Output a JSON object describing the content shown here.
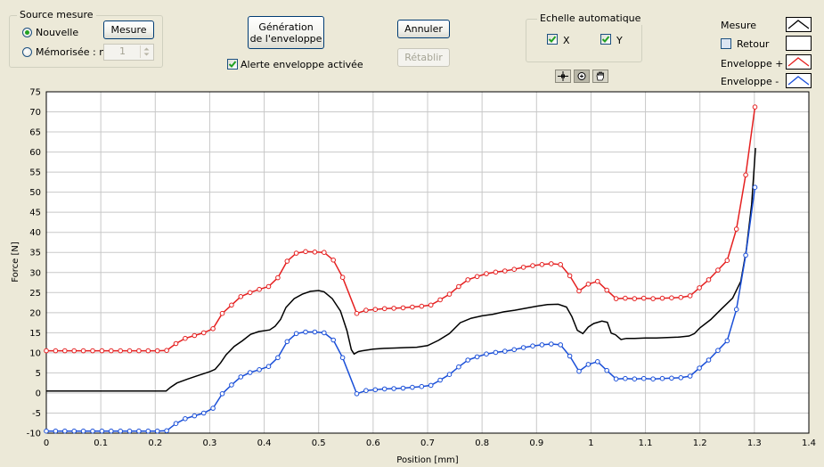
{
  "source_group": {
    "title": "Source mesure",
    "radio_nouvelle": "Nouvelle",
    "radio_memorisee": "Mémorisée : n°",
    "selected": "Nouvelle",
    "memo_number": "1",
    "mesure_button": "Mesure"
  },
  "envelope": {
    "generate_button_line1": "Génération",
    "generate_button_line2": "de l'enveloppe",
    "alert_checkbox": "Alerte enveloppe activée",
    "alert_checked": true
  },
  "actions": {
    "annuler_button": "Annuler",
    "retablir_button": "Rétablir",
    "retablir_enabled": false
  },
  "autoscale_group": {
    "title": "Echelle automatique",
    "x_label": "X",
    "x_checked": true,
    "y_label": "Y",
    "y_checked": true
  },
  "graph_tools": [
    "crosshair-cursor-icon",
    "zoom-icon",
    "pan-hand-icon"
  ],
  "legend": {
    "mesure": "Mesure",
    "retour": "Retour",
    "retour_checked": false,
    "enveloppe_plus": "Enveloppe +",
    "enveloppe_minus": "Enveloppe -"
  },
  "chart_data": {
    "type": "line",
    "xlabel": "Position [mm]",
    "ylabel": "Force [N]",
    "xlim": [
      0,
      1.4
    ],
    "ylim": [
      -10,
      75
    ],
    "x_ticks": [
      0,
      0.1,
      0.2,
      0.3,
      0.4,
      0.5,
      0.6,
      0.7,
      0.8,
      0.9,
      1,
      1.1,
      1.2,
      1.3,
      1.4
    ],
    "y_ticks": [
      -10,
      -5,
      0,
      5,
      10,
      15,
      20,
      25,
      30,
      35,
      40,
      45,
      50,
      55,
      60,
      65,
      70,
      75
    ],
    "grid": true,
    "series": [
      {
        "name": "Enveloppe +",
        "color": "#e52020",
        "markers": true,
        "points": [
          [
            0,
            10.5
          ],
          [
            0.017,
            10.5
          ],
          [
            0.034,
            10.5
          ],
          [
            0.051,
            10.5
          ],
          [
            0.068,
            10.5
          ],
          [
            0.085,
            10.5
          ],
          [
            0.102,
            10.5
          ],
          [
            0.119,
            10.5
          ],
          [
            0.136,
            10.5
          ],
          [
            0.153,
            10.5
          ],
          [
            0.17,
            10.5
          ],
          [
            0.187,
            10.5
          ],
          [
            0.204,
            10.5
          ],
          [
            0.221,
            10.6
          ],
          [
            0.238,
            12.3
          ],
          [
            0.255,
            13.6
          ],
          [
            0.272,
            14.3
          ],
          [
            0.289,
            15
          ],
          [
            0.306,
            16
          ],
          [
            0.323,
            19.8
          ],
          [
            0.34,
            21.9
          ],
          [
            0.357,
            24
          ],
          [
            0.374,
            25
          ],
          [
            0.391,
            25.8
          ],
          [
            0.408,
            26.5
          ],
          [
            0.425,
            28.7
          ],
          [
            0.442,
            32.8
          ],
          [
            0.459,
            34.8
          ],
          [
            0.476,
            35.2
          ],
          [
            0.493,
            35.1
          ],
          [
            0.51,
            35
          ],
          [
            0.527,
            33.1
          ],
          [
            0.544,
            28.8
          ],
          [
            0.57,
            19.8
          ],
          [
            0.587,
            20.6
          ],
          [
            0.604,
            20.8
          ],
          [
            0.621,
            21
          ],
          [
            0.638,
            21.1
          ],
          [
            0.655,
            21.2
          ],
          [
            0.672,
            21.4
          ],
          [
            0.689,
            21.6
          ],
          [
            0.706,
            21.9
          ],
          [
            0.723,
            23.2
          ],
          [
            0.74,
            24.6
          ],
          [
            0.757,
            26.5
          ],
          [
            0.774,
            28.2
          ],
          [
            0.791,
            29
          ],
          [
            0.808,
            29.7
          ],
          [
            0.825,
            30.1
          ],
          [
            0.842,
            30.4
          ],
          [
            0.859,
            30.8
          ],
          [
            0.876,
            31.3
          ],
          [
            0.893,
            31.7
          ],
          [
            0.91,
            32
          ],
          [
            0.927,
            32.2
          ],
          [
            0.944,
            32
          ],
          [
            0.961,
            29.2
          ],
          [
            0.978,
            25.4
          ],
          [
            0.995,
            27.1
          ],
          [
            1.012,
            27.8
          ],
          [
            1.029,
            25.6
          ],
          [
            1.046,
            23.5
          ],
          [
            1.063,
            23.6
          ],
          [
            1.08,
            23.5
          ],
          [
            1.097,
            23.6
          ],
          [
            1.114,
            23.5
          ],
          [
            1.131,
            23.6
          ],
          [
            1.148,
            23.7
          ],
          [
            1.165,
            23.8
          ],
          [
            1.182,
            24.2
          ],
          [
            1.199,
            26.2
          ],
          [
            1.216,
            28.2
          ],
          [
            1.233,
            30.6
          ],
          [
            1.25,
            33
          ],
          [
            1.267,
            40.8
          ],
          [
            1.284,
            54.3
          ],
          [
            1.301,
            71.2
          ]
        ]
      },
      {
        "name": "Mesure",
        "color": "#000000",
        "markers": false,
        "points": [
          [
            0,
            0.5
          ],
          [
            0.05,
            0.5
          ],
          [
            0.1,
            0.5
          ],
          [
            0.15,
            0.5
          ],
          [
            0.2,
            0.5
          ],
          [
            0.22,
            0.5
          ],
          [
            0.228,
            1.4
          ],
          [
            0.24,
            2.5
          ],
          [
            0.26,
            3.5
          ],
          [
            0.28,
            4.4
          ],
          [
            0.3,
            5.3
          ],
          [
            0.31,
            5.9
          ],
          [
            0.32,
            7.5
          ],
          [
            0.33,
            9.5
          ],
          [
            0.345,
            11.6
          ],
          [
            0.36,
            13
          ],
          [
            0.375,
            14.6
          ],
          [
            0.39,
            15.3
          ],
          [
            0.41,
            15.7
          ],
          [
            0.42,
            16.6
          ],
          [
            0.43,
            18.3
          ],
          [
            0.44,
            21.3
          ],
          [
            0.455,
            23.5
          ],
          [
            0.47,
            24.6
          ],
          [
            0.485,
            25.3
          ],
          [
            0.5,
            25.5
          ],
          [
            0.51,
            25.2
          ],
          [
            0.525,
            23.5
          ],
          [
            0.54,
            20.4
          ],
          [
            0.552,
            15.5
          ],
          [
            0.56,
            10.8
          ],
          [
            0.565,
            9.7
          ],
          [
            0.573,
            10.3
          ],
          [
            0.58,
            10.5
          ],
          [
            0.6,
            10.9
          ],
          [
            0.62,
            11.1
          ],
          [
            0.64,
            11.2
          ],
          [
            0.66,
            11.3
          ],
          [
            0.68,
            11.4
          ],
          [
            0.7,
            11.8
          ],
          [
            0.72,
            13.1
          ],
          [
            0.74,
            14.8
          ],
          [
            0.76,
            17.5
          ],
          [
            0.78,
            18.6
          ],
          [
            0.8,
            19.2
          ],
          [
            0.82,
            19.6
          ],
          [
            0.84,
            20.2
          ],
          [
            0.86,
            20.6
          ],
          [
            0.88,
            21.1
          ],
          [
            0.9,
            21.6
          ],
          [
            0.92,
            22
          ],
          [
            0.94,
            22.1
          ],
          [
            0.955,
            21.4
          ],
          [
            0.965,
            19
          ],
          [
            0.975,
            15.6
          ],
          [
            0.985,
            14.8
          ],
          [
            0.995,
            16.4
          ],
          [
            1.005,
            17.3
          ],
          [
            1.02,
            17.9
          ],
          [
            1.03,
            17.6
          ],
          [
            1.037,
            14.9
          ],
          [
            1.045,
            14.5
          ],
          [
            1.055,
            13.3
          ],
          [
            1.065,
            13.6
          ],
          [
            1.08,
            13.6
          ],
          [
            1.1,
            13.7
          ],
          [
            1.12,
            13.7
          ],
          [
            1.14,
            13.8
          ],
          [
            1.16,
            13.9
          ],
          [
            1.18,
            14.2
          ],
          [
            1.19,
            14.8
          ],
          [
            1.2,
            16.2
          ],
          [
            1.22,
            18.3
          ],
          [
            1.24,
            21
          ],
          [
            1.26,
            23.6
          ],
          [
            1.275,
            27.8
          ],
          [
            1.285,
            35.5
          ],
          [
            1.295,
            47
          ],
          [
            1.302,
            61
          ]
        ]
      },
      {
        "name": "Enveloppe -",
        "color": "#1a4fd8",
        "markers": true,
        "points": [
          [
            0,
            -9.5
          ],
          [
            0.017,
            -9.5
          ],
          [
            0.034,
            -9.5
          ],
          [
            0.051,
            -9.5
          ],
          [
            0.068,
            -9.5
          ],
          [
            0.085,
            -9.5
          ],
          [
            0.102,
            -9.5
          ],
          [
            0.119,
            -9.5
          ],
          [
            0.136,
            -9.5
          ],
          [
            0.153,
            -9.5
          ],
          [
            0.17,
            -9.5
          ],
          [
            0.187,
            -9.5
          ],
          [
            0.204,
            -9.5
          ],
          [
            0.221,
            -9.4
          ],
          [
            0.238,
            -7.6
          ],
          [
            0.255,
            -6.4
          ],
          [
            0.272,
            -5.7
          ],
          [
            0.289,
            -5
          ],
          [
            0.306,
            -3.8
          ],
          [
            0.323,
            -0.2
          ],
          [
            0.34,
            2
          ],
          [
            0.357,
            4
          ],
          [
            0.374,
            5.1
          ],
          [
            0.391,
            5.8
          ],
          [
            0.408,
            6.6
          ],
          [
            0.425,
            8.8
          ],
          [
            0.442,
            12.8
          ],
          [
            0.459,
            14.8
          ],
          [
            0.476,
            15.2
          ],
          [
            0.493,
            15.2
          ],
          [
            0.51,
            15
          ],
          [
            0.527,
            13.2
          ],
          [
            0.544,
            8.8
          ],
          [
            0.57,
            -0.2
          ],
          [
            0.587,
            0.6
          ],
          [
            0.604,
            0.8
          ],
          [
            0.621,
            1
          ],
          [
            0.638,
            1.1
          ],
          [
            0.655,
            1.2
          ],
          [
            0.672,
            1.4
          ],
          [
            0.689,
            1.6
          ],
          [
            0.706,
            1.9
          ],
          [
            0.723,
            3.2
          ],
          [
            0.74,
            4.6
          ],
          [
            0.757,
            6.5
          ],
          [
            0.774,
            8.2
          ],
          [
            0.791,
            9
          ],
          [
            0.808,
            9.7
          ],
          [
            0.825,
            10.1
          ],
          [
            0.842,
            10.4
          ],
          [
            0.859,
            10.8
          ],
          [
            0.876,
            11.3
          ],
          [
            0.893,
            11.7
          ],
          [
            0.91,
            12
          ],
          [
            0.927,
            12.2
          ],
          [
            0.944,
            12
          ],
          [
            0.961,
            9.2
          ],
          [
            0.978,
            5.4
          ],
          [
            0.995,
            7.1
          ],
          [
            1.012,
            7.8
          ],
          [
            1.029,
            5.6
          ],
          [
            1.046,
            3.5
          ],
          [
            1.063,
            3.6
          ],
          [
            1.08,
            3.5
          ],
          [
            1.097,
            3.6
          ],
          [
            1.114,
            3.5
          ],
          [
            1.131,
            3.6
          ],
          [
            1.148,
            3.7
          ],
          [
            1.165,
            3.8
          ],
          [
            1.182,
            4.2
          ],
          [
            1.199,
            6.2
          ],
          [
            1.216,
            8.2
          ],
          [
            1.233,
            10.6
          ],
          [
            1.25,
            13
          ],
          [
            1.267,
            20.8
          ],
          [
            1.284,
            34.3
          ],
          [
            1.301,
            51.2
          ]
        ]
      }
    ]
  }
}
